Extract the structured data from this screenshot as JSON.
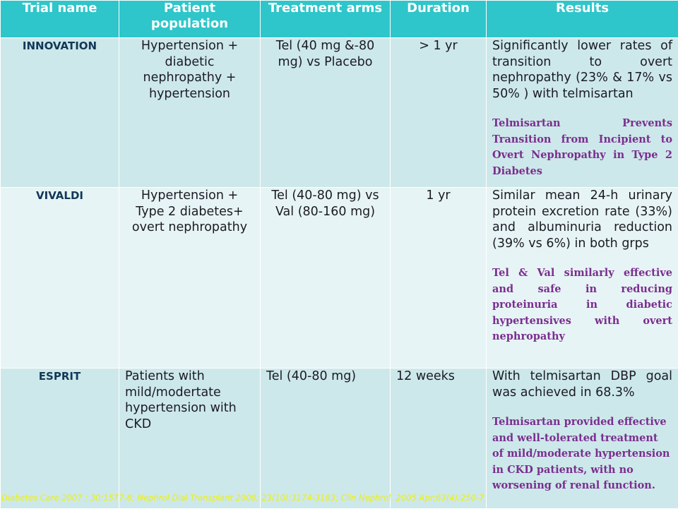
{
  "headers": [
    "Trial name",
    "Patient population",
    "Treatment arms",
    "Duration",
    "Results"
  ],
  "rows": [
    {
      "name": "INNOVATION",
      "population": "Hypertension + diabetic nephropathy + hypertension",
      "treatment": "Tel (40 mg &-80 mg) vs Placebo",
      "duration": "> 1 yr",
      "result": "Significantly lower rates of transition to overt nephropathy (23% & 17% vs 50% ) with telmisartan",
      "note": "Telmisartan Prevents Transition from Incipient to Overt Nephropathy in Type 2 Diabetes"
    },
    {
      "name": "VIVALDI",
      "population": "Hypertension + Type 2 diabetes+ overt nephropathy",
      "treatment": "Tel (40-80 mg) vs Val (80-160 mg)",
      "duration": "1 yr",
      "result": "Similar mean 24-h urinary protein excretion rate (33%) and albuminuria reduction  (39% vs 6%) in both grps",
      "note": "Tel & Val similarly effective and safe in reducing proteinuria in diabetic hypertensives with overt nephropathy"
    },
    {
      "name": "ESPRIT",
      "population": "Patients with mild/modertate hypertension with CKD",
      "treatment": "Tel (40-80 mg)",
      "duration": "12 weeks",
      "result": "With telmisartan DBP goal was achieved in 68.3%",
      "note": "Telmisartan provided effective and well-tolerated treatment of mild/moderate hypertension in CKD patients, with no worsening of renal function."
    }
  ],
  "footer": "Diabetes Care 2007 ; 30:1577-8; Nephrol Dial Transplant 2008; 23(10):3174-3183;     Clin Nephrol. 2005 Apr;63(4):250-7"
}
